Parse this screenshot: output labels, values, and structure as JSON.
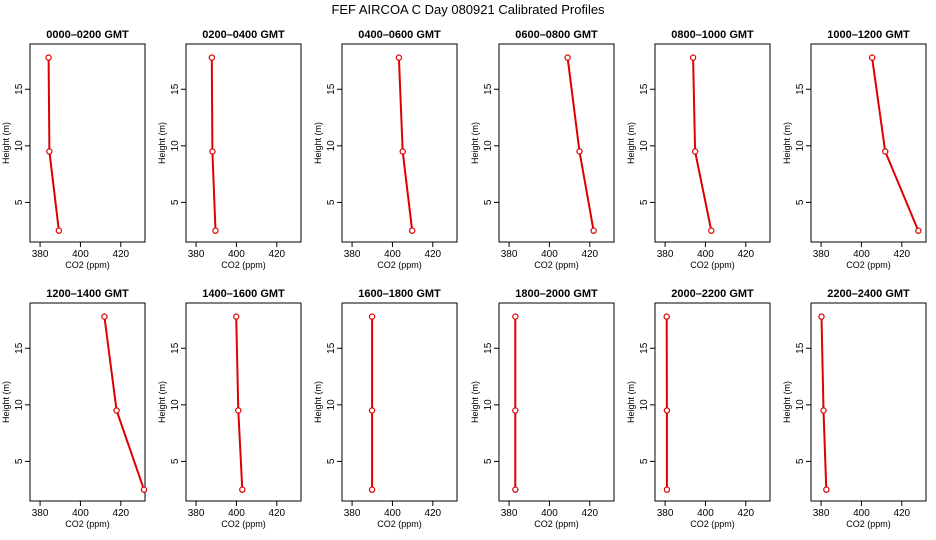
{
  "title": "FEF AIRCOA C  Day 080921  Calibrated Profiles",
  "colors": {
    "series": "#dd0000",
    "axis": "#000000",
    "background": "#ffffff"
  },
  "chart_data": [
    {
      "type": "line",
      "title": "0000–0200 GMT",
      "xlabel": "CO2 (ppm)",
      "ylabel": "Height (m)",
      "xlim": [
        375,
        432
      ],
      "ylim": [
        1.5,
        19
      ],
      "xticks": [
        380,
        400,
        420
      ],
      "yticks": [
        5,
        10,
        15
      ],
      "points": [
        {
          "x": 384.2,
          "y": 17.8
        },
        {
          "x": 384.6,
          "y": 9.5
        },
        {
          "x": 389.3,
          "y": 2.5
        }
      ]
    },
    {
      "type": "line",
      "title": "0200–0400 GMT",
      "xlabel": "CO2 (ppm)",
      "ylabel": "Height (m)",
      "xlim": [
        375,
        432
      ],
      "ylim": [
        1.5,
        19
      ],
      "xticks": [
        380,
        400,
        420
      ],
      "yticks": [
        5,
        10,
        15
      ],
      "points": [
        {
          "x": 387.8,
          "y": 17.8
        },
        {
          "x": 388.1,
          "y": 9.5
        },
        {
          "x": 389.6,
          "y": 2.5
        }
      ]
    },
    {
      "type": "line",
      "title": "0400–0600 GMT",
      "xlabel": "CO2 (ppm)",
      "ylabel": "Height (m)",
      "xlim": [
        375,
        432
      ],
      "ylim": [
        1.5,
        19
      ],
      "xticks": [
        380,
        400,
        420
      ],
      "yticks": [
        5,
        10,
        15
      ],
      "points": [
        {
          "x": 403.2,
          "y": 17.8
        },
        {
          "x": 405.1,
          "y": 9.5
        },
        {
          "x": 409.8,
          "y": 2.5
        }
      ]
    },
    {
      "type": "line",
      "title": "0600–0800 GMT",
      "xlabel": "CO2 (ppm)",
      "ylabel": "Height (m)",
      "xlim": [
        375,
        432
      ],
      "ylim": [
        1.5,
        19
      ],
      "xticks": [
        380,
        400,
        420
      ],
      "yticks": [
        5,
        10,
        15
      ],
      "points": [
        {
          "x": 409.0,
          "y": 17.8
        },
        {
          "x": 414.9,
          "y": 9.5
        },
        {
          "x": 421.9,
          "y": 2.5
        }
      ]
    },
    {
      "type": "line",
      "title": "0800–1000 GMT",
      "xlabel": "CO2 (ppm)",
      "ylabel": "Height (m)",
      "xlim": [
        375,
        432
      ],
      "ylim": [
        1.5,
        19
      ],
      "xticks": [
        380,
        400,
        420
      ],
      "yticks": [
        5,
        10,
        15
      ],
      "points": [
        {
          "x": 393.9,
          "y": 17.8
        },
        {
          "x": 394.9,
          "y": 9.5
        },
        {
          "x": 402.9,
          "y": 2.5
        }
      ]
    },
    {
      "type": "line",
      "title": "1000–1200 GMT",
      "xlabel": "CO2 (ppm)",
      "ylabel": "Height (m)",
      "xlim": [
        375,
        432
      ],
      "ylim": [
        1.5,
        19
      ],
      "xticks": [
        380,
        400,
        420
      ],
      "yticks": [
        5,
        10,
        15
      ],
      "points": [
        {
          "x": 405.3,
          "y": 17.8
        },
        {
          "x": 411.8,
          "y": 9.5
        },
        {
          "x": 428.2,
          "y": 2.5
        }
      ]
    },
    {
      "type": "line",
      "title": "1200–1400 GMT",
      "xlabel": "CO2 (ppm)",
      "ylabel": "Height (m)",
      "xlim": [
        375,
        432
      ],
      "ylim": [
        1.5,
        19
      ],
      "xticks": [
        380,
        400,
        420
      ],
      "yticks": [
        5,
        10,
        15
      ],
      "points": [
        {
          "x": 411.9,
          "y": 17.8
        },
        {
          "x": 417.9,
          "y": 9.5
        },
        {
          "x": 431.5,
          "y": 2.5
        }
      ]
    },
    {
      "type": "line",
      "title": "1400–1600 GMT",
      "xlabel": "CO2 (ppm)",
      "ylabel": "Height (m)",
      "xlim": [
        375,
        432
      ],
      "ylim": [
        1.5,
        19
      ],
      "xticks": [
        380,
        400,
        420
      ],
      "yticks": [
        5,
        10,
        15
      ],
      "points": [
        {
          "x": 399.9,
          "y": 17.8
        },
        {
          "x": 400.9,
          "y": 9.5
        },
        {
          "x": 402.9,
          "y": 2.5
        }
      ]
    },
    {
      "type": "line",
      "title": "1600–1800 GMT",
      "xlabel": "CO2 (ppm)",
      "ylabel": "Height (m)",
      "xlim": [
        375,
        432
      ],
      "ylim": [
        1.5,
        19
      ],
      "xticks": [
        380,
        400,
        420
      ],
      "yticks": [
        5,
        10,
        15
      ],
      "points": [
        {
          "x": 389.9,
          "y": 17.8
        },
        {
          "x": 389.9,
          "y": 9.5
        },
        {
          "x": 389.9,
          "y": 2.5
        }
      ]
    },
    {
      "type": "line",
      "title": "1800–2000 GMT",
      "xlabel": "CO2 (ppm)",
      "ylabel": "Height (m)",
      "xlim": [
        375,
        432
      ],
      "ylim": [
        1.5,
        19
      ],
      "xticks": [
        380,
        400,
        420
      ],
      "yticks": [
        5,
        10,
        15
      ],
      "points": [
        {
          "x": 383.1,
          "y": 17.8
        },
        {
          "x": 383.1,
          "y": 9.5
        },
        {
          "x": 383.1,
          "y": 2.5
        }
      ]
    },
    {
      "type": "line",
      "title": "2000–2200 GMT",
      "xlabel": "CO2 (ppm)",
      "ylabel": "Height (m)",
      "xlim": [
        375,
        432
      ],
      "ylim": [
        1.5,
        19
      ],
      "xticks": [
        380,
        400,
        420
      ],
      "yticks": [
        5,
        10,
        15
      ],
      "points": [
        {
          "x": 380.8,
          "y": 17.8
        },
        {
          "x": 380.9,
          "y": 9.5
        },
        {
          "x": 380.9,
          "y": 2.5
        }
      ]
    },
    {
      "type": "line",
      "title": "2200–2400 GMT",
      "xlabel": "CO2 (ppm)",
      "ylabel": "Height (m)",
      "xlim": [
        375,
        432
      ],
      "ylim": [
        1.5,
        19
      ],
      "xticks": [
        380,
        400,
        420
      ],
      "yticks": [
        5,
        10,
        15
      ],
      "points": [
        {
          "x": 380.2,
          "y": 17.8
        },
        {
          "x": 381.2,
          "y": 9.5
        },
        {
          "x": 382.6,
          "y": 2.5
        }
      ]
    }
  ]
}
